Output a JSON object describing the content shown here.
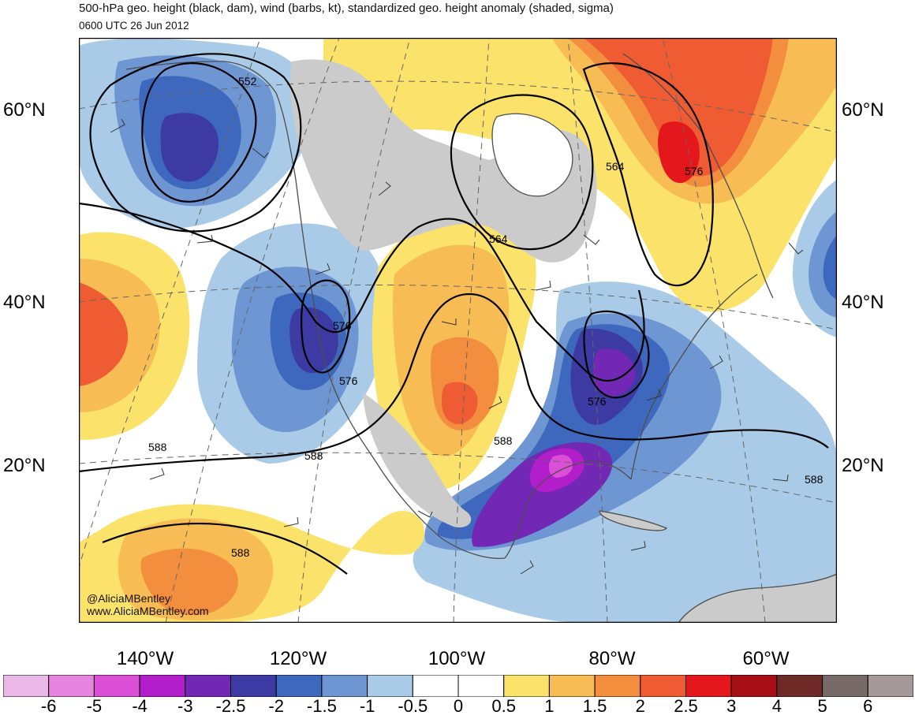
{
  "header": {
    "title": "500-hPa geo. height (black, dam), wind (barbs, kt), standardized geo. height anomaly (shaded, sigma)",
    "valid_time": "0600 UTC 26 Jun 2012"
  },
  "axes": {
    "lat_labels": [
      "60°N",
      "40°N",
      "20°N"
    ],
    "lon_labels": [
      "140°W",
      "120°W",
      "100°W",
      "80°W",
      "60°W"
    ]
  },
  "contour_labels": [
    "552",
    "564",
    "564",
    "576",
    "576",
    "576",
    "576",
    "588",
    "588",
    "588",
    "588",
    "588"
  ],
  "credit": {
    "handle": "@AliciaMBentley",
    "website": "www.AliciaMBentley.com"
  },
  "colorbar": {
    "ticks": [
      "-6",
      "-5",
      "-4",
      "-3",
      "-2.5",
      "-2",
      "-1.5",
      "-1",
      "-0.5",
      "0",
      "0.5",
      "1",
      "1.5",
      "2",
      "2.5",
      "3",
      "4",
      "5",
      "6"
    ],
    "colors": [
      "#e9b8e6",
      "#e684e0",
      "#da4fd6",
      "#b31ecb",
      "#7228b5",
      "#3e3aa4",
      "#3d68bd",
      "#6e96d2",
      "#a9cbe8",
      "#ffffff",
      "#ffffff",
      "#fbe36b",
      "#f7bc54",
      "#f38e3f",
      "#ef5b32",
      "#e4171c",
      "#a50f15",
      "#6e2a27",
      "#776a68",
      "#a69999"
    ]
  },
  "colors": {
    "land": "#cbcbcb",
    "coast": "#4d4d4d",
    "contour": "#000000"
  }
}
